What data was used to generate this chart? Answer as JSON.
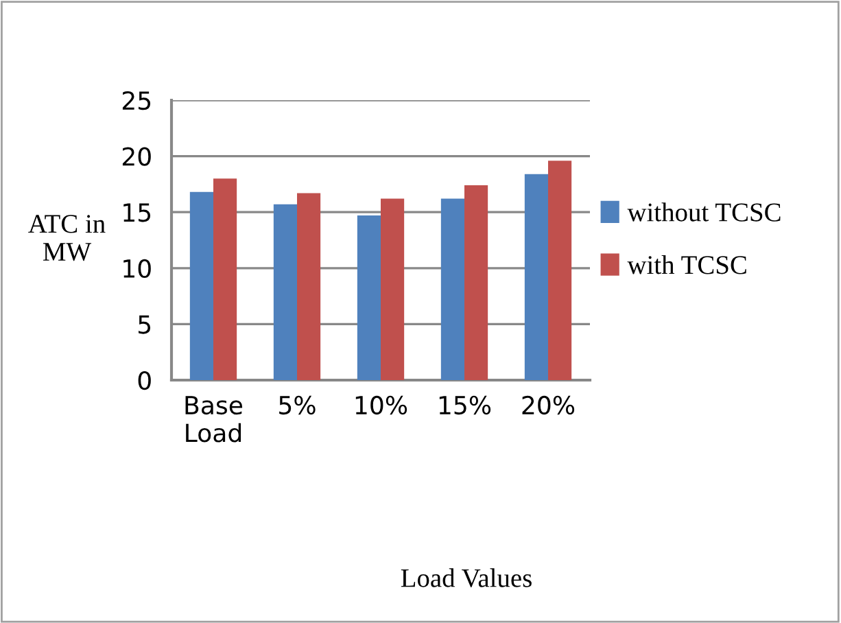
{
  "chart_data": {
    "type": "bar",
    "xlabel": "Load Values",
    "ylabel": "ATC in\nMW",
    "categories": [
      "Base\nLoad",
      "5%",
      "10%",
      "15%",
      "20%"
    ],
    "series": [
      {
        "name": "without TCSC",
        "color": "#4f81bd",
        "values": [
          16.8,
          15.7,
          14.7,
          16.2,
          18.4
        ]
      },
      {
        "name": "with TCSC",
        "color": "#c0504d",
        "values": [
          18.0,
          16.7,
          16.2,
          17.4,
          19.6
        ]
      }
    ],
    "ylim": [
      0,
      25
    ],
    "yticks": [
      0,
      5,
      10,
      15,
      20,
      25
    ],
    "grid": "y",
    "legend": "right"
  }
}
